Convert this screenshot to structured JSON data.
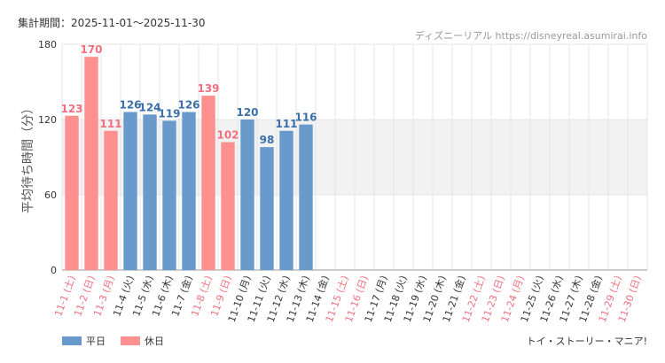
{
  "header": {
    "period": "集計期間：2025-11-01～2025-11-30",
    "credit": "ディズニーリアル https://disneyreal.asumirai.info"
  },
  "footer": {
    "ride_name": "トイ・ストーリー・マニア!"
  },
  "colors": {
    "weekday": "#6a9acb",
    "holiday": "#ff9090",
    "weekday_text": "#3a6fa8",
    "holiday_text": "#f07080",
    "band": "#f2f2f2",
    "grid": "#e6e6e6"
  },
  "chart_data": {
    "type": "bar",
    "ylabel": "平均待ち時間（分）",
    "ylim": [
      0,
      180
    ],
    "yticks": [
      0,
      60,
      120,
      180
    ],
    "shaded_band": [
      60,
      120
    ],
    "legend_position": "bottom-left",
    "legend": [
      {
        "key": "weekday",
        "label": "平日"
      },
      {
        "key": "holiday",
        "label": "休日"
      }
    ],
    "categories": [
      "11-1 (土)",
      "11-2 (日)",
      "11-3 (月)",
      "11-4 (火)",
      "11-5 (水)",
      "11-6 (木)",
      "11-7 (金)",
      "11-8 (土)",
      "11-9 (日)",
      "11-10 (月)",
      "11-11 (火)",
      "11-12 (水)",
      "11-13 (木)",
      "11-14 (金)",
      "11-15 (土)",
      "11-16 (日)",
      "11-17 (月)",
      "11-18 (火)",
      "11-19 (水)",
      "11-20 (木)",
      "11-21 (金)",
      "11-22 (土)",
      "11-23 (日)",
      "11-24 (月)",
      "11-25 (火)",
      "11-26 (水)",
      "11-27 (木)",
      "11-28 (金)",
      "11-29 (土)",
      "11-30 (日)"
    ],
    "day_type": [
      "holiday",
      "holiday",
      "holiday",
      "weekday",
      "weekday",
      "weekday",
      "weekday",
      "holiday",
      "holiday",
      "weekday",
      "weekday",
      "weekday",
      "weekday",
      "weekday",
      "holiday",
      "holiday",
      "weekday",
      "weekday",
      "weekday",
      "weekday",
      "weekday",
      "holiday",
      "holiday",
      "holiday",
      "weekday",
      "weekday",
      "weekday",
      "weekday",
      "holiday",
      "holiday"
    ],
    "values": [
      123,
      170,
      111,
      126,
      124,
      119,
      126,
      139,
      102,
      120,
      98,
      111,
      116,
      null,
      null,
      null,
      null,
      null,
      null,
      null,
      null,
      null,
      null,
      null,
      null,
      null,
      null,
      null,
      null,
      null
    ]
  }
}
